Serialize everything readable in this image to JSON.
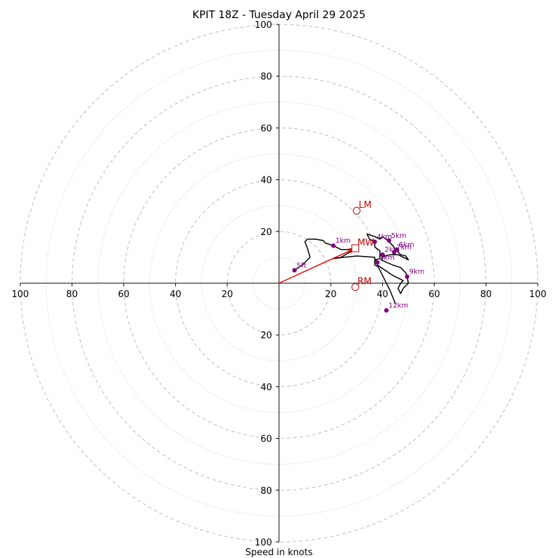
{
  "chart_data": {
    "type": "scatter",
    "subtype": "hodograph",
    "title": "KPIT 18Z - Tuesday April 29 2025",
    "xlabel": "Speed in knots",
    "ylabel": "",
    "xlim": [
      -100,
      100
    ],
    "ylim": [
      -100,
      100
    ],
    "rings_major": [
      20,
      40,
      60,
      80,
      100
    ],
    "rings_minor": [
      10,
      30,
      50,
      70,
      90
    ],
    "x_tick_labels": [
      "100",
      "80",
      "60",
      "40",
      "20",
      "20",
      "40",
      "60",
      "80",
      "100"
    ],
    "y_tick_labels": [
      "100",
      "80",
      "60",
      "40",
      "20",
      "20",
      "40",
      "60",
      "80",
      "100"
    ],
    "grid": true,
    "colors": {
      "trace": "#000000",
      "heights": "#800080",
      "motion": "#cc0000",
      "arrow": "#ee0000",
      "grid": "#bbbbbb"
    },
    "hodograph_trace": [
      [
        6,
        5
      ],
      [
        9,
        7
      ],
      [
        12,
        10
      ],
      [
        11,
        13.5
      ],
      [
        10,
        16
      ],
      [
        11,
        17
      ],
      [
        14,
        17
      ],
      [
        17,
        16.5
      ],
      [
        18,
        15.5
      ],
      [
        21,
        14.5
      ],
      [
        24,
        13
      ],
      [
        29,
        13
      ],
      [
        24,
        10
      ],
      [
        21,
        9.5
      ],
      [
        25,
        10
      ],
      [
        30,
        10.5
      ],
      [
        37,
        10
      ],
      [
        37,
        7
      ],
      [
        38,
        6.5
      ],
      [
        38,
        8.5
      ],
      [
        37,
        9
      ],
      [
        39,
        9.5
      ],
      [
        39,
        12.5
      ],
      [
        37,
        14
      ],
      [
        37,
        16
      ],
      [
        35,
        17
      ],
      [
        34,
        19
      ],
      [
        37,
        18
      ],
      [
        39,
        17
      ],
      [
        40,
        18
      ],
      [
        42,
        16.5
      ],
      [
        44,
        14.5
      ],
      [
        45,
        13
      ],
      [
        47,
        11
      ],
      [
        49,
        10.5
      ],
      [
        50,
        9
      ],
      [
        46,
        11
      ],
      [
        43,
        11
      ],
      [
        41,
        10.5
      ],
      [
        40,
        10
      ],
      [
        39.5,
        9
      ],
      [
        44,
        7
      ],
      [
        47,
        6
      ],
      [
        49,
        4
      ],
      [
        49.5,
        2.5
      ],
      [
        50,
        0
      ],
      [
        48,
        -2
      ],
      [
        47,
        -4
      ],
      [
        46,
        -2
      ],
      [
        47,
        0
      ],
      [
        48,
        1
      ],
      [
        46,
        2
      ],
      [
        44,
        3
      ],
      [
        38,
        7
      ],
      [
        41,
        1
      ],
      [
        43,
        -3
      ],
      [
        45,
        -8
      ]
    ],
    "height_points": [
      {
        "label": "Sfc",
        "x": 6,
        "y": 5
      },
      {
        "label": "1km",
        "x": 21,
        "y": 14.5
      },
      {
        "label": "2km",
        "x": 40,
        "y": 11
      },
      {
        "label": "3km",
        "x": 38,
        "y": 8
      },
      {
        "label": "4km",
        "x": 37,
        "y": 16
      },
      {
        "label": "5km",
        "x": 42.5,
        "y": 16.5
      },
      {
        "label": "6km",
        "x": 45.5,
        "y": 13
      },
      {
        "label": "7km",
        "x": 44.5,
        "y": 12
      },
      {
        "label": "9km",
        "x": 49.5,
        "y": 2.5
      },
      {
        "label": "12km",
        "x": 41.5,
        "y": -10.5
      }
    ],
    "storm_motion": {
      "LM": {
        "label": "LM",
        "x": 30,
        "y": 28
      },
      "MW": {
        "label": "MW",
        "x": 29.5,
        "y": 13.5
      },
      "RM": {
        "label": "RM",
        "x": 29.5,
        "y": -1.5
      }
    },
    "arrow": {
      "from": [
        0,
        0
      ],
      "to": [
        29.5,
        13.5
      ]
    }
  }
}
